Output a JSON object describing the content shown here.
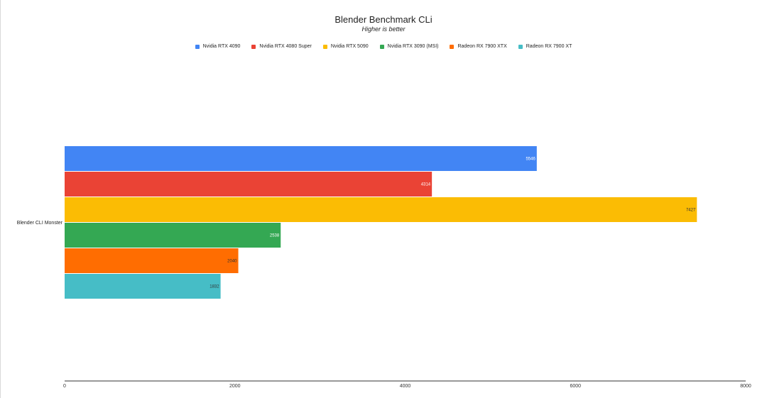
{
  "chart_data": {
    "type": "bar",
    "orientation": "horizontal",
    "title": "Blender Benchmark CLi",
    "subtitle": "Higher is better",
    "categories": [
      "Blender CLI Monster"
    ],
    "series": [
      {
        "name": "Nvidia RTX 4090",
        "values": [
          5546
        ],
        "color": "#4285f4",
        "label_color": "#ffffff"
      },
      {
        "name": "Nvidia RTX 4080 Super",
        "values": [
          4314
        ],
        "color": "#ea4335",
        "label_color": "#ffffff"
      },
      {
        "name": "Nvidia RTX 5090",
        "values": [
          7427
        ],
        "color": "#fbbc04",
        "label_color": "#333333"
      },
      {
        "name": "Nvidia RTX 3090 (MSI)",
        "values": [
          2538
        ],
        "color": "#34a853",
        "label_color": "#ffffff"
      },
      {
        "name": "Radeon RX 7900 XTX",
        "values": [
          2040
        ],
        "color": "#ff6d01",
        "label_color": "#333333"
      },
      {
        "name": "Radeon RX 7900 XT",
        "values": [
          1832
        ],
        "color": "#46bdc6",
        "label_color": "#333333"
      }
    ],
    "xlim": [
      0,
      8000
    ],
    "xticks": [
      "0",
      "2000",
      "4000",
      "6000",
      "8000"
    ],
    "xlabel": "",
    "ylabel": "",
    "legend_position": "top",
    "grid": false
  }
}
